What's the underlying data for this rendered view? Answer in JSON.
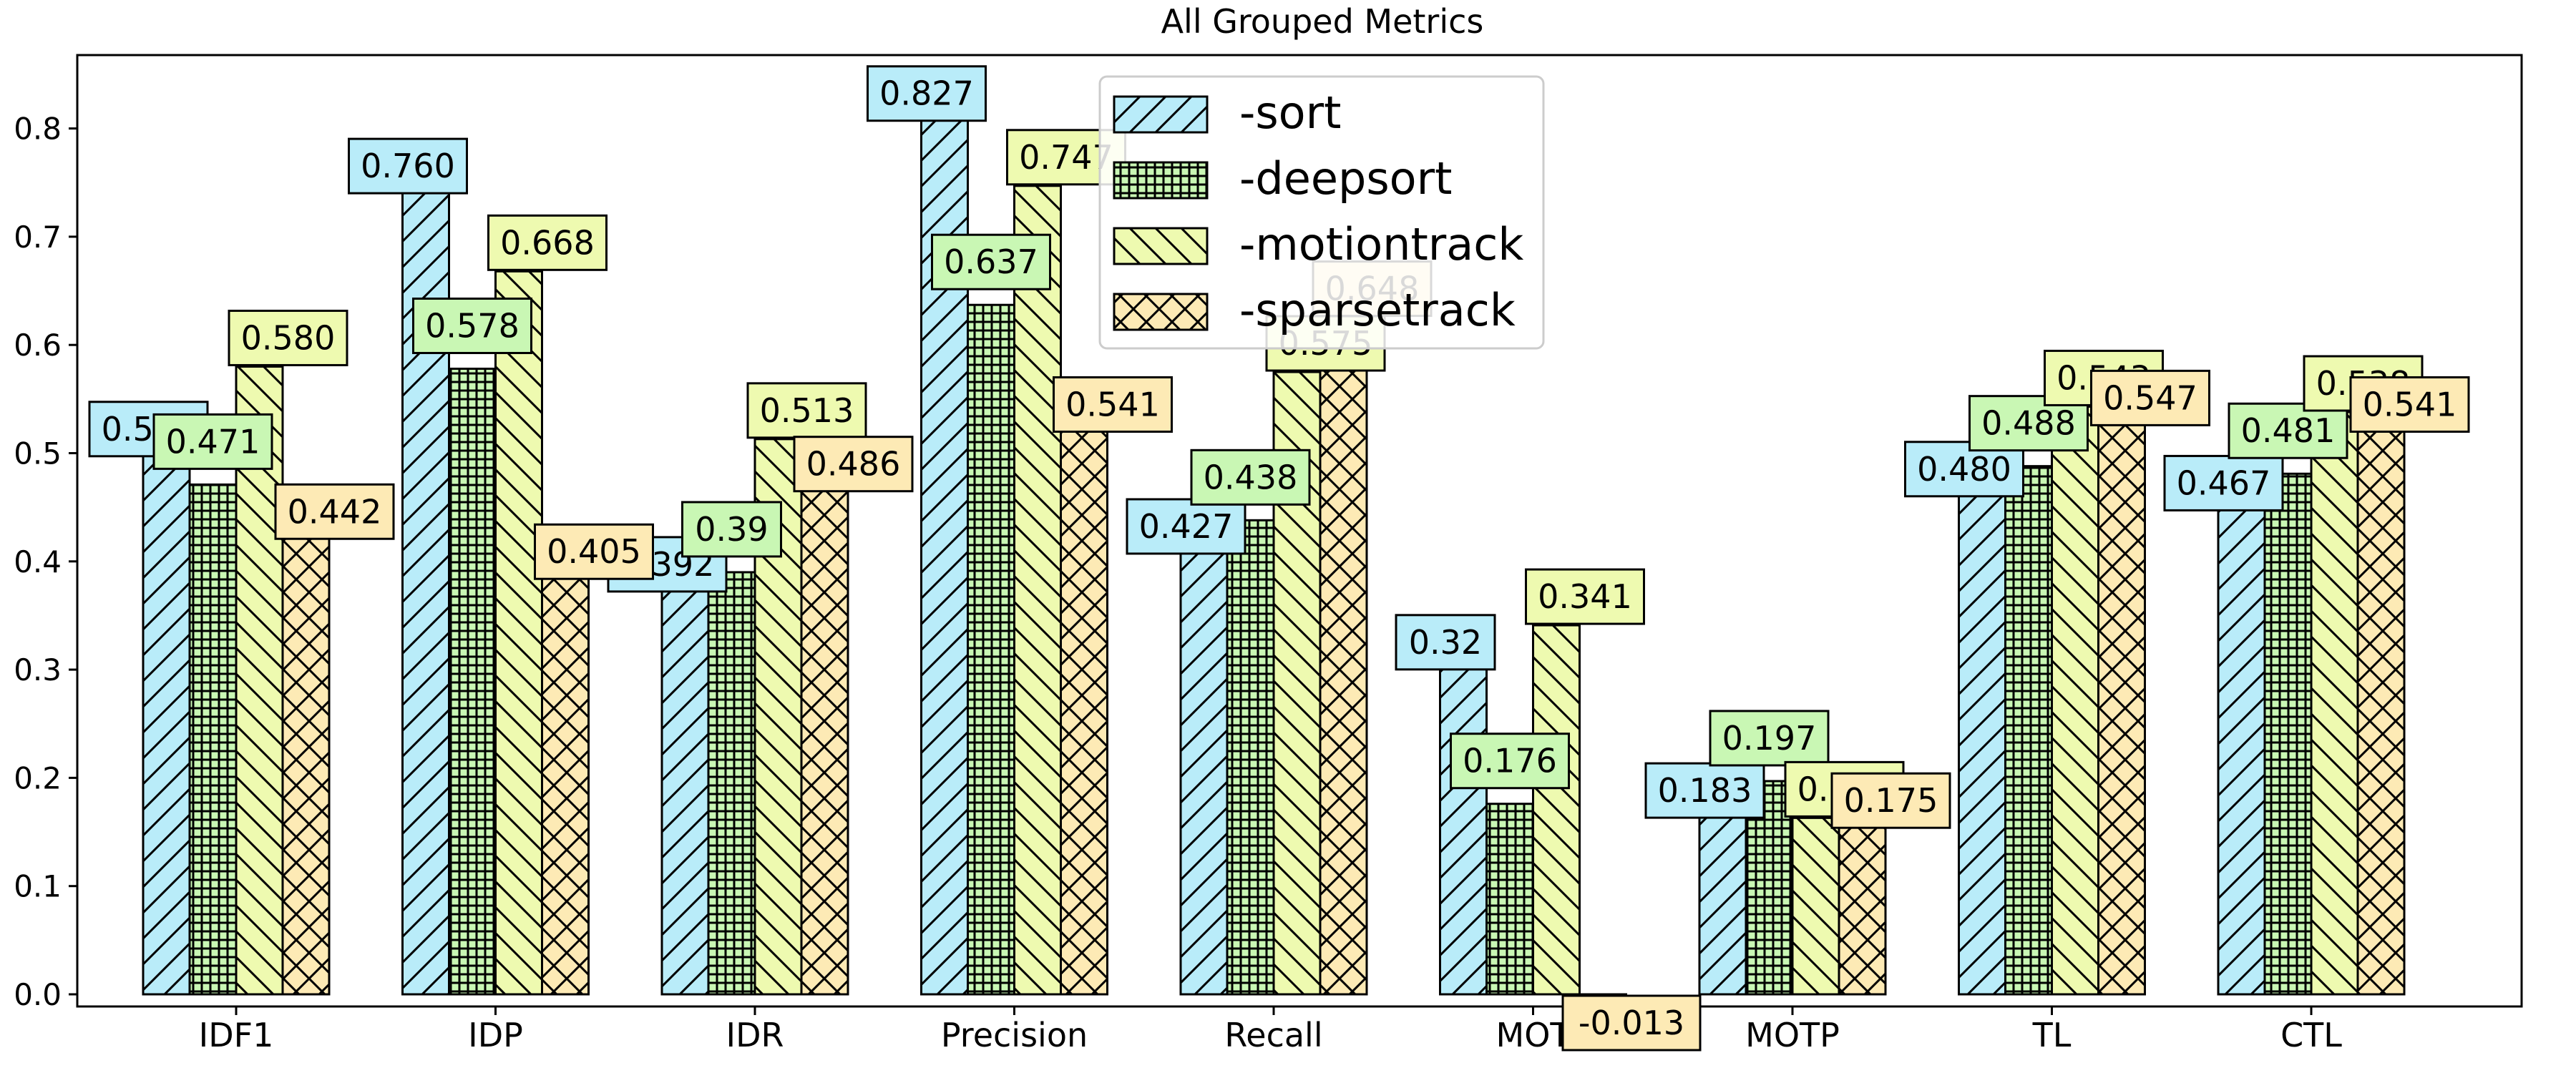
{
  "chart_data": {
    "type": "bar",
    "title": "All Grouped Metrics",
    "xlabel": "",
    "ylabel": "",
    "ylim": [
      -0.013,
      0.87
    ],
    "yticks": [
      "0.0",
      "0.1",
      "0.2",
      "0.3",
      "0.4",
      "0.5",
      "0.6",
      "0.7",
      "0.8"
    ],
    "grid": false,
    "legend_position": "top-center",
    "categories": [
      "IDF1",
      "IDP",
      "IDR",
      "Precision",
      "Recall",
      "MOTA",
      "MOTP",
      "TL",
      "CTL"
    ],
    "category_tick_labels": [
      "IDF1",
      "IDP",
      "IDR",
      "Precision",
      "Recall",
      "MOT",
      "MOTP",
      "TL",
      "CTL"
    ],
    "series": [
      {
        "name": "-sort",
        "color": "#b9ecf9",
        "hatch": "diagonal-forward",
        "values": [
          0.517,
          0.76,
          0.392,
          0.827,
          0.427,
          0.32,
          0.183,
          0.48,
          0.467
        ],
        "labels": [
          "0.517",
          "0.760",
          "0.392",
          "0.827",
          "0.427",
          "0.32",
          "0.183",
          "0.480",
          "0.467"
        ]
      },
      {
        "name": "-deepsort",
        "color": "#c9f7b4",
        "hatch": "grid",
        "values": [
          0.471,
          0.578,
          0.39,
          0.637,
          0.438,
          0.176,
          0.197,
          0.488,
          0.481
        ],
        "labels": [
          "0.471",
          "0.578",
          "0.39",
          "0.637",
          "0.438",
          "0.176",
          "0.197",
          "0.488",
          "0.481"
        ]
      },
      {
        "name": "-motiontrack",
        "color": "#eefab0",
        "hatch": "diagonal-back",
        "values": [
          0.58,
          0.668,
          0.513,
          0.747,
          0.575,
          0.341,
          0.163,
          0.543,
          0.538
        ],
        "labels": [
          "0.580",
          "0.668",
          "0.513",
          "0.747",
          "0.575",
          "0.341",
          "0.163",
          "0.543",
          "0.538"
        ]
      },
      {
        "name": "-sparsetrack",
        "color": "#fdeab5",
        "hatch": "crosshatch",
        "values": [
          0.442,
          0.405,
          0.486,
          0.541,
          0.648,
          -0.013,
          0.175,
          0.547,
          0.541
        ],
        "labels": [
          "0.442",
          "0.405",
          "0.486",
          "0.541",
          "0.648",
          "-0.013",
          "0.175",
          "0.547",
          "0.541"
        ]
      }
    ]
  }
}
